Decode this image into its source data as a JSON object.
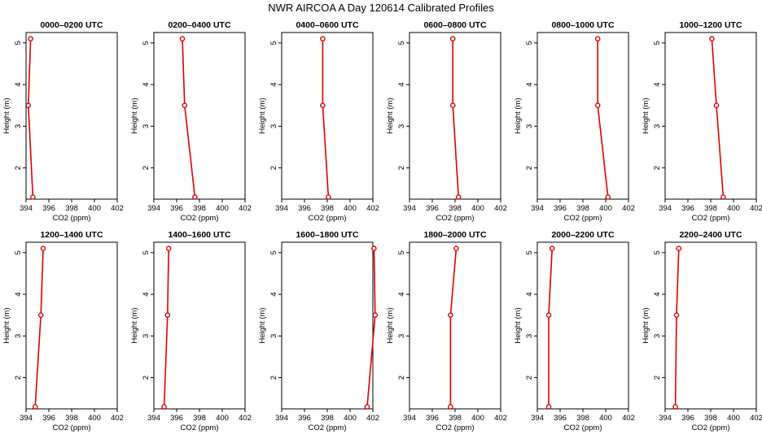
{
  "title": "NWR AIRCOA A  Day 120614  Calibrated Profiles",
  "style": {
    "line_color": "#dd0000",
    "axis_color": "#000000"
  },
  "chart_data": {
    "type": "line",
    "xlabel": "CO2 (ppm)",
    "ylabel": "Height (m)",
    "xlim": [
      394,
      402
    ],
    "ylim": [
      1.25,
      5.25
    ],
    "xticks": [
      "394",
      "396",
      "398",
      "400",
      "402"
    ],
    "yticks": [
      "2",
      "3",
      "4",
      "5"
    ],
    "heights": [
      5.1,
      3.5,
      1.3
    ],
    "panels": [
      {
        "title": "0000–0200 UTC",
        "co2": [
          394.4,
          394.2,
          394.6
        ]
      },
      {
        "title": "0200–0400 UTC",
        "co2": [
          396.5,
          396.7,
          397.6
        ]
      },
      {
        "title": "0400–0600 UTC",
        "co2": [
          397.6,
          397.6,
          398.1
        ]
      },
      {
        "title": "0600–0800 UTC",
        "co2": [
          397.8,
          397.8,
          398.3
        ]
      },
      {
        "title": "0800–1000 UTC",
        "co2": [
          399.3,
          399.3,
          400.2
        ]
      },
      {
        "title": "1000–1200 UTC",
        "co2": [
          398.1,
          398.5,
          399.1
        ]
      },
      {
        "title": "1200–1400 UTC",
        "co2": [
          395.5,
          395.3,
          394.8
        ]
      },
      {
        "title": "1400–1600 UTC",
        "co2": [
          395.3,
          395.2,
          394.9
        ]
      },
      {
        "title": "1600–1800 UTC",
        "co2": [
          402.1,
          402.2,
          401.5
        ]
      },
      {
        "title": "1800–2000 UTC",
        "co2": [
          398.1,
          397.6,
          397.6
        ]
      },
      {
        "title": "2000–2200 UTC",
        "co2": [
          395.3,
          395.0,
          395.0
        ]
      },
      {
        "title": "2200–2400 UTC",
        "co2": [
          395.2,
          395.0,
          394.9
        ]
      }
    ]
  }
}
